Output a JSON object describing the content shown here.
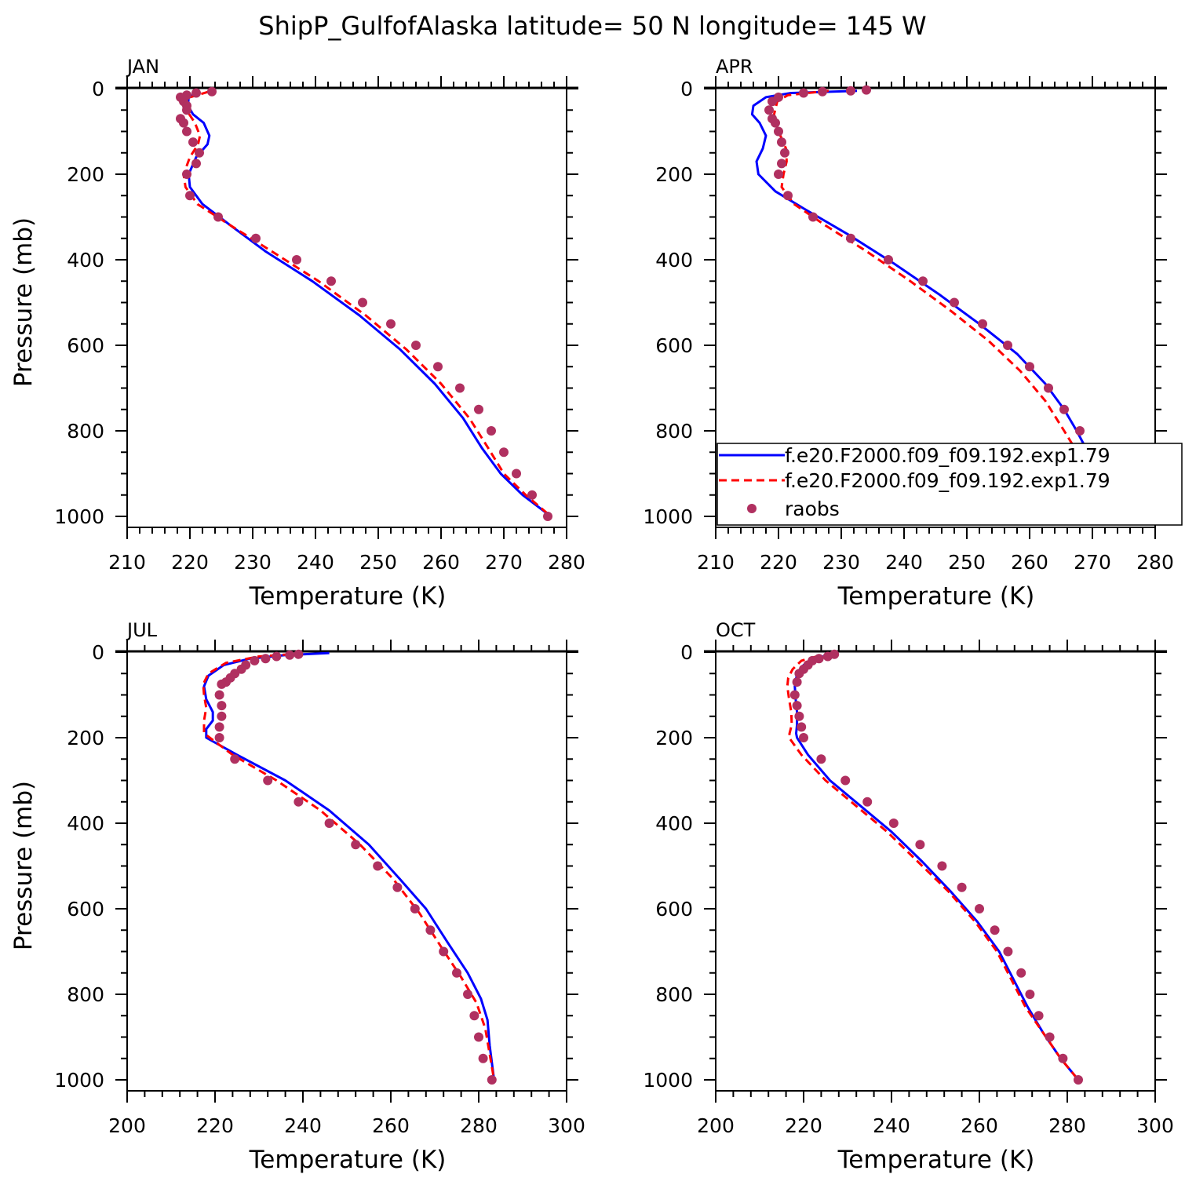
{
  "figure_title": "ShipP_GulfofAlaska  latitude= 50 N longitude= 145 W",
  "colors": {
    "series_1": "#0000ff",
    "series_2": "#ff0000",
    "raobs": "#b03060",
    "axes": "#000000"
  },
  "legend": {
    "panel": "APR",
    "placement": "lower-right",
    "entries": [
      {
        "label": "f.e20.F2000.f09_f09.192.exp1.79",
        "style": "solid",
        "color": "#0000ff"
      },
      {
        "label": "f.e20.F2000.f09_f09.192.exp1.79",
        "style": "dashed",
        "color": "#ff0000"
      },
      {
        "label": "raobs",
        "style": "marker",
        "color": "#b03060"
      }
    ]
  },
  "chart_data": [
    {
      "type": "line",
      "panel": "JAN",
      "xlabel": "Temperature (K)",
      "ylabel": "Pressure (mb)",
      "xlim": [
        210,
        280
      ],
      "xticks": [
        210,
        220,
        230,
        240,
        250,
        260,
        270,
        280
      ],
      "ylim": [
        1000,
        0
      ],
      "yticks": [
        0,
        200,
        400,
        600,
        800,
        1000
      ],
      "series": [
        {
          "kind": "solid",
          "x": [
            221.5,
            219.8,
            219.7,
            220.5,
            222.2,
            223.1,
            222.8,
            221.0,
            219.8,
            220.0,
            222.0,
            226.5,
            232.0,
            239.5,
            247.0,
            253.5,
            259.0,
            263.5,
            266.5,
            269.5,
            273.0,
            277.5
          ],
          "y": [
            7,
            20,
            40,
            60,
            80,
            110,
            130,
            160,
            200,
            230,
            270,
            320,
            380,
            450,
            530,
            610,
            690,
            770,
            840,
            900,
            950,
            1000
          ]
        },
        {
          "kind": "dashed",
          "x": [
            223.0,
            220.0,
            219.4,
            219.9,
            220.8,
            221.6,
            221.3,
            220.0,
            219.0,
            219.3,
            221.2,
            226.5,
            233.0,
            240.5,
            248.0,
            254.5,
            260.0,
            264.5,
            267.5,
            270.0,
            273.5,
            277.5
          ],
          "y": [
            7,
            20,
            40,
            60,
            80,
            110,
            130,
            160,
            200,
            230,
            270,
            320,
            380,
            450,
            530,
            610,
            690,
            770,
            840,
            900,
            950,
            1000
          ]
        }
      ],
      "raobs": {
        "x": [
          223.5,
          221.0,
          219.5,
          218.5,
          219.0,
          219.5,
          219.5,
          218.5,
          219.0,
          219.5,
          220.5,
          221.5,
          221.0,
          219.5,
          220.0,
          224.5,
          230.5,
          237.0,
          242.5,
          247.5,
          252.0,
          256.0,
          259.5,
          263.0,
          266.0,
          268.0,
          270.0,
          272.0,
          274.5,
          277.0
        ],
        "y": [
          7,
          10,
          15,
          20,
          30,
          40,
          50,
          70,
          80,
          100,
          125,
          150,
          175,
          200,
          250,
          300,
          350,
          400,
          450,
          500,
          550,
          600,
          650,
          700,
          750,
          800,
          850,
          900,
          950,
          1000
        ]
      }
    },
    {
      "type": "line",
      "panel": "APR",
      "xlabel": "Temperature (K)",
      "ylabel": "",
      "xlim": [
        210,
        280
      ],
      "xticks": [
        210,
        220,
        230,
        240,
        250,
        260,
        270,
        280
      ],
      "ylim": [
        1000,
        0
      ],
      "yticks": [
        0,
        200,
        400,
        600,
        800,
        1000
      ],
      "series": [
        {
          "kind": "solid",
          "x": [
            232.5,
            222.0,
            218.0,
            216.0,
            215.8,
            217.0,
            218.0,
            217.5,
            216.5,
            216.8,
            219.5,
            224.0,
            231.0,
            238.5,
            245.5,
            252.0,
            258.0,
            262.5,
            265.5,
            267.5,
            270.0,
            273.5,
            277.5
          ],
          "y": [
            5,
            10,
            20,
            40,
            60,
            80,
            110,
            140,
            170,
            200,
            240,
            280,
            340,
            410,
            480,
            550,
            620,
            690,
            750,
            800,
            870,
            930,
            1000
          ]
        },
        {
          "kind": "dashed",
          "x": [
            228.0,
            221.5,
            219.8,
            219.3,
            219.5,
            220.3,
            221.2,
            221.3,
            220.8,
            220.5,
            222.5,
            227.5,
            234.0,
            241.0,
            247.5,
            253.5,
            258.5,
            262.5,
            265.5,
            268.0,
            271.0,
            277.5
          ],
          "y": [
            5,
            15,
            30,
            60,
            80,
            110,
            140,
            170,
            200,
            230,
            270,
            320,
            380,
            450,
            520,
            590,
            660,
            730,
            800,
            860,
            930,
            1000
          ]
        }
      ],
      "raobs": {
        "x": [
          234.0,
          231.5,
          227.0,
          224.0,
          220.0,
          219.0,
          218.5,
          219.0,
          219.5,
          220.0,
          220.5,
          221.0,
          220.5,
          220.0,
          221.5,
          225.5,
          231.5,
          237.5,
          243.0,
          248.0,
          252.5,
          256.5,
          260.0,
          263.0,
          265.5,
          268.0,
          270.0,
          272.0,
          274.5,
          277.5
        ],
        "y": [
          3,
          5,
          7,
          10,
          20,
          30,
          50,
          70,
          80,
          100,
          125,
          150,
          175,
          200,
          250,
          300,
          350,
          400,
          450,
          500,
          550,
          600,
          650,
          700,
          750,
          800,
          850,
          900,
          950,
          1000
        ]
      }
    },
    {
      "type": "line",
      "panel": "JUL",
      "xlabel": "Temperature (K)",
      "ylabel": "Pressure (mb)",
      "xlim": [
        200,
        300
      ],
      "xticks": [
        200,
        220,
        240,
        260,
        280,
        300
      ],
      "ylim": [
        1000,
        0
      ],
      "yticks": [
        0,
        200,
        400,
        600,
        800,
        1000
      ],
      "series": [
        {
          "kind": "solid",
          "x": [
            246.0,
            236.0,
            228.0,
            222.0,
            218.5,
            217.5,
            218.0,
            219.5,
            219.5,
            218.0,
            218.0,
            225.0,
            236.0,
            246.0,
            255.0,
            262.0,
            268.0,
            273.0,
            277.5,
            280.5,
            282.0,
            282.5,
            283.5
          ],
          "y": [
            2,
            7,
            15,
            30,
            55,
            80,
            110,
            140,
            160,
            180,
            200,
            240,
            300,
            370,
            450,
            530,
            600,
            680,
            750,
            810,
            860,
            920,
            1000
          ]
        },
        {
          "kind": "dashed",
          "x": [
            240.0,
            230.0,
            222.5,
            218.5,
            217.3,
            217.5,
            218.0,
            217.5,
            217.5,
            224.0,
            234.0,
            244.0,
            253.0,
            260.5,
            266.5,
            271.5,
            276.0,
            279.5,
            281.5,
            282.5,
            283.5
          ],
          "y": [
            3,
            10,
            25,
            50,
            75,
            100,
            130,
            160,
            190,
            240,
            300,
            370,
            450,
            530,
            610,
            690,
            760,
            820,
            880,
            940,
            1000
          ]
        }
      ],
      "raobs": {
        "x": [
          239.0,
          237.0,
          234.0,
          231.5,
          229.0,
          227.0,
          226.0,
          224.5,
          223.5,
          222.5,
          221.5,
          221.0,
          221.5,
          221.5,
          221.0,
          221.0,
          224.5,
          232.0,
          239.0,
          246.0,
          252.0,
          257.0,
          261.5,
          265.5,
          269.0,
          272.0,
          275.0,
          277.5,
          279.0,
          280.0,
          281.0,
          283.0
        ],
        "y": [
          5,
          7,
          10,
          15,
          20,
          30,
          40,
          50,
          60,
          70,
          75,
          100,
          125,
          150,
          175,
          200,
          250,
          300,
          350,
          400,
          450,
          500,
          550,
          600,
          650,
          700,
          750,
          800,
          850,
          900,
          950,
          1000
        ]
      }
    },
    {
      "type": "line",
      "panel": "OCT",
      "xlabel": "Temperature (K)",
      "ylabel": "",
      "xlim": [
        200,
        300
      ],
      "xticks": [
        200,
        220,
        240,
        260,
        280,
        300
      ],
      "ylim": [
        1000,
        0
      ],
      "yticks": [
        0,
        200,
        400,
        600,
        800,
        1000
      ],
      "series": [
        {
          "kind": "solid",
          "x": [
            226.5,
            222.5,
            220.0,
            218.5,
            218.0,
            218.2,
            218.5,
            218.5,
            218.3,
            218.5,
            221.0,
            226.0,
            233.0,
            240.0,
            247.0,
            253.5,
            259.5,
            264.5,
            268.0,
            271.0,
            274.5,
            278.5,
            282.5
          ],
          "y": [
            5,
            15,
            30,
            50,
            80,
            110,
            140,
            170,
            190,
            200,
            240,
            300,
            360,
            420,
            490,
            560,
            630,
            700,
            770,
            830,
            890,
            950,
            1000
          ]
        },
        {
          "kind": "dashed",
          "x": [
            223.0,
            219.5,
            217.5,
            216.5,
            216.3,
            216.7,
            217.2,
            217.3,
            216.8,
            216.7,
            219.5,
            225.0,
            232.0,
            239.0,
            246.0,
            253.0,
            259.0,
            264.0,
            267.5,
            270.5,
            274.5,
            278.5,
            282.5
          ],
          "y": [
            10,
            20,
            40,
            60,
            80,
            110,
            140,
            170,
            190,
            200,
            240,
            300,
            360,
            420,
            490,
            560,
            630,
            700,
            770,
            830,
            890,
            950,
            1000
          ]
        }
      ],
      "raobs": {
        "x": [
          227.0,
          225.5,
          223.5,
          222.0,
          221.0,
          220.0,
          219.0,
          218.5,
          218.0,
          218.5,
          219.0,
          219.5,
          220.0,
          224.0,
          229.5,
          234.5,
          240.5,
          246.5,
          251.5,
          256.0,
          260.0,
          263.5,
          266.5,
          269.5,
          271.5,
          273.5,
          276.0,
          279.0,
          282.5
        ],
        "y": [
          5,
          10,
          15,
          20,
          30,
          40,
          50,
          70,
          100,
          125,
          150,
          175,
          200,
          250,
          300,
          350,
          400,
          450,
          500,
          550,
          600,
          650,
          700,
          750,
          800,
          850,
          900,
          950,
          1000
        ]
      }
    }
  ]
}
